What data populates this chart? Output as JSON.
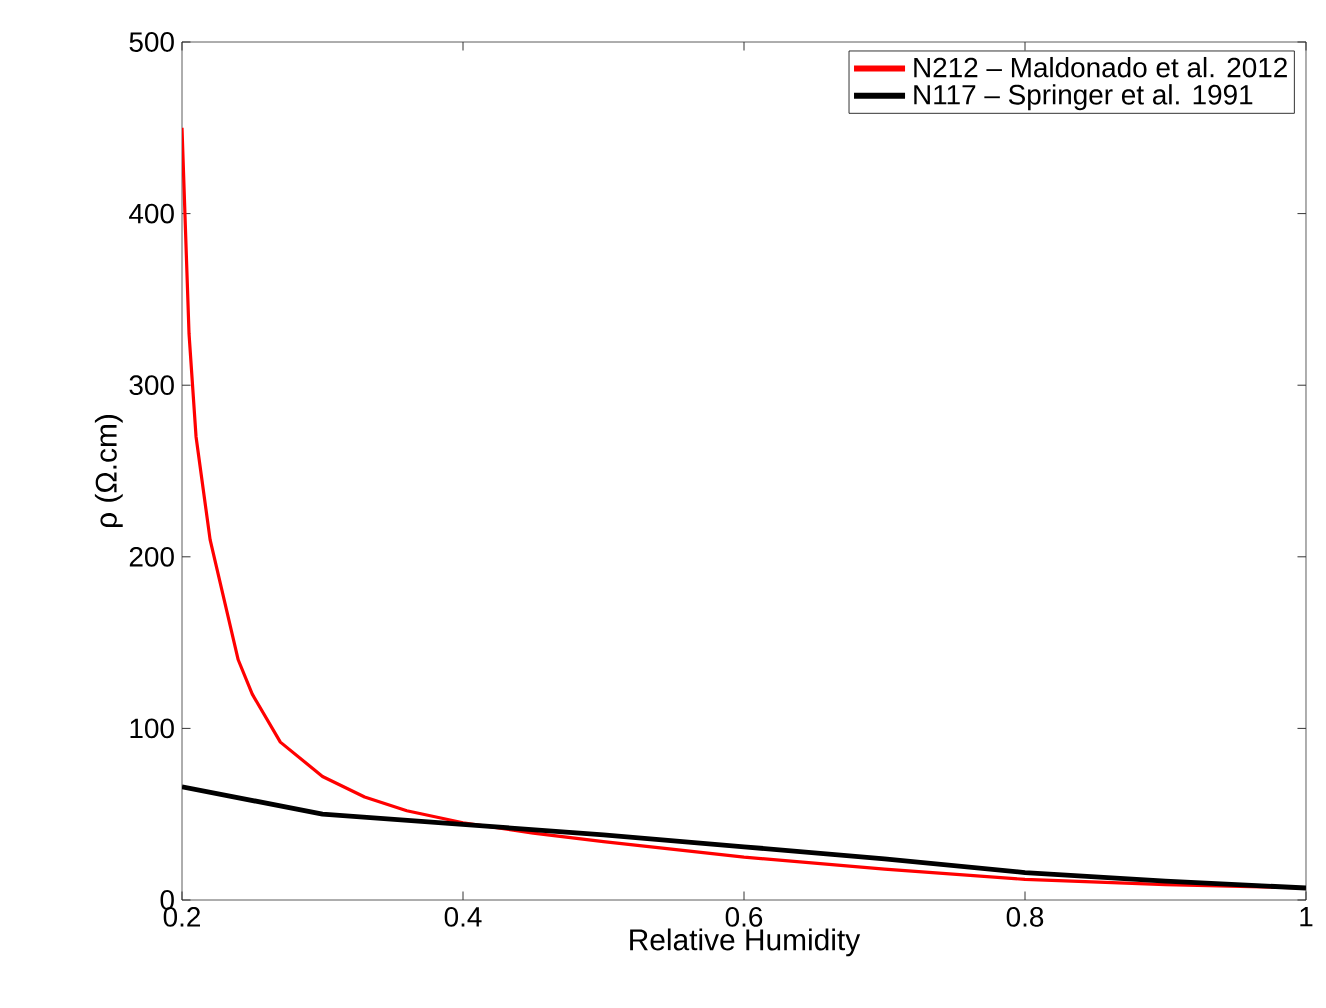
{
  "chart_data": {
    "type": "line",
    "xlabel": "Relative Humidity",
    "ylabel": "ρ (Ω.cm)",
    "xlim": [
      0.2,
      1
    ],
    "ylim": [
      0,
      500
    ],
    "xticks": [
      0.2,
      0.4,
      0.6,
      0.8,
      1
    ],
    "yticks": [
      0,
      100,
      200,
      300,
      400,
      500
    ],
    "grid": false,
    "legend": "top right",
    "line_style": "solid",
    "marker": "none",
    "series": [
      {
        "name": "N212 – Maldonado et al. 2012",
        "color": "#ff0000",
        "x": [
          0.2,
          0.205,
          0.21,
          0.22,
          0.23,
          0.24,
          0.25,
          0.27,
          0.3,
          0.33,
          0.36,
          0.4,
          0.45,
          0.5,
          0.6,
          0.7,
          0.8,
          0.9,
          1.0
        ],
        "values": [
          450,
          330,
          270,
          210,
          175,
          140,
          120,
          92,
          72,
          60,
          52,
          45,
          39,
          34,
          25,
          18,
          12,
          9,
          7
        ]
      },
      {
        "name": "N117 – Springer et al. 1991",
        "color": "#000000",
        "x": [
          0.2,
          0.3,
          0.4,
          0.5,
          0.6,
          0.7,
          0.8,
          0.9,
          1.0
        ],
        "values": [
          66,
          50,
          44,
          38,
          31,
          24,
          16,
          11,
          7
        ]
      }
    ]
  }
}
